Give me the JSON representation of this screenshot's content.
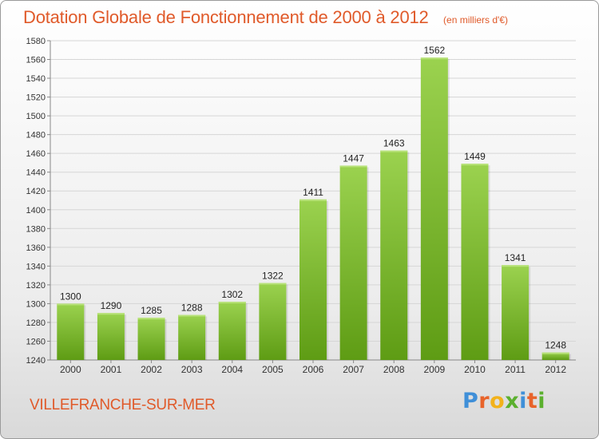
{
  "header": {
    "title": "Dotation Globale de Fonctionnement de 2000 à 2012",
    "subtitle": "(en milliers d'€)"
  },
  "footer": {
    "commune": "VILLEFRANCHE-SUR-MER",
    "logo_text": "Proxiti"
  },
  "colors": {
    "bar_top": "#9bd24f",
    "bar_bottom": "#5e9c14",
    "title": "#e05a2a"
  },
  "chart_data": {
    "type": "bar",
    "title": "Dotation Globale de Fonctionnement de 2000 à 2012",
    "subtitle": "(en milliers d'€)",
    "categories": [
      "2000",
      "2001",
      "2002",
      "2003",
      "2004",
      "2005",
      "2006",
      "2007",
      "2008",
      "2009",
      "2010",
      "2011",
      "2012"
    ],
    "values": [
      1300,
      1290,
      1285,
      1288,
      1302,
      1322,
      1411,
      1447,
      1463,
      1562,
      1449,
      1341,
      1248
    ],
    "ylim": [
      1240,
      1580
    ],
    "yticks": [
      1240,
      1260,
      1280,
      1300,
      1320,
      1340,
      1360,
      1380,
      1400,
      1420,
      1440,
      1460,
      1480,
      1500,
      1520,
      1540,
      1560,
      1580
    ],
    "grid": true,
    "data_labels": true
  }
}
